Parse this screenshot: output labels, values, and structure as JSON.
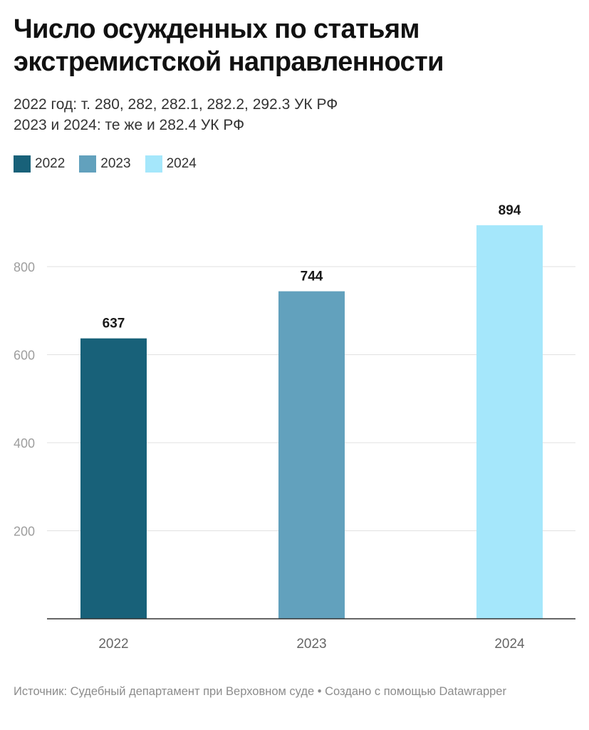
{
  "title": "Число осужденных по статьям экстремистской направленности",
  "subtitle": {
    "line1": "2022 год: т. 280, 282, 282.1, 282.2, 292.3 УК РФ",
    "line2": "2023 и 2024: те же и 282.4 УК РФ"
  },
  "legend": [
    {
      "label": "2022",
      "color": "#186179"
    },
    {
      "label": "2023",
      "color": "#62a1bd"
    },
    {
      "label": "2024",
      "color": "#a5e7fb"
    }
  ],
  "chart_data": {
    "type": "bar",
    "categories": [
      "2022",
      "2023",
      "2024"
    ],
    "values": [
      637,
      744,
      894
    ],
    "colors": [
      "#186179",
      "#62a1bd",
      "#a5e7fb"
    ],
    "yticks": [
      200,
      400,
      600,
      800
    ],
    "ylim": [
      0,
      900
    ],
    "grid": true,
    "legend_position": "top-left"
  },
  "source": "Источник: Судебный департамент при Верховном суде • Создано с помощью Datawrapper"
}
